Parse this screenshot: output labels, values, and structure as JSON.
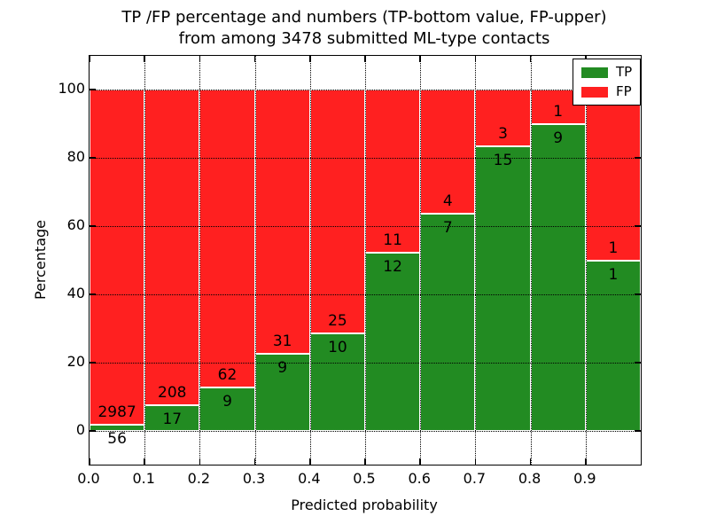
{
  "title": {
    "line1": "TP /FP percentage and numbers (TP-bottom value, FP-upper)",
    "line2": "from among 3478 submitted ML-type contacts"
  },
  "axes": {
    "xlabel": "Predicted probability",
    "ylabel": "Percentage",
    "xtick_labels": [
      "0.0",
      "0.1",
      "0.2",
      "0.3",
      "0.4",
      "0.5",
      "0.6",
      "0.7",
      "0.8",
      "0.9"
    ],
    "ytick_labels": [
      "0",
      "20",
      "40",
      "60",
      "80",
      "100"
    ],
    "ytick_values": [
      0,
      20,
      40,
      60,
      80,
      100
    ]
  },
  "legend": {
    "items": [
      {
        "label": "TP",
        "color": "#228B22"
      },
      {
        "label": "FP",
        "color": "#FF2020"
      }
    ]
  },
  "colors": {
    "tp": "#228B22",
    "fp": "#FF2020",
    "grid": "#000000",
    "background": "#ffffff"
  },
  "chart_data": {
    "type": "bar",
    "stacked": true,
    "orientation": "vertical",
    "title": "TP /FP percentage and numbers (TP-bottom value, FP-upper) from among 3478 submitted ML-type contacts",
    "xlabel": "Predicted probability",
    "ylabel": "Percentage",
    "xlim": [
      0.0,
      1.0
    ],
    "ylim": [
      -10,
      110
    ],
    "grid": "dotted",
    "legend_position": "upper-right",
    "total_submitted": 3478,
    "bins": [
      "0.0-0.1",
      "0.1-0.2",
      "0.2-0.3",
      "0.3-0.4",
      "0.4-0.5",
      "0.5-0.6",
      "0.6-0.7",
      "0.7-0.8",
      "0.8-0.9",
      "0.9-1.0"
    ],
    "series": [
      {
        "name": "TP",
        "color": "#228B22",
        "counts": [
          56,
          17,
          9,
          9,
          10,
          12,
          7,
          15,
          9,
          1
        ],
        "percent": [
          1.84,
          7.56,
          12.68,
          22.5,
          28.57,
          52.17,
          63.64,
          83.33,
          90.0,
          50.0
        ]
      },
      {
        "name": "FP",
        "color": "#FF2020",
        "counts": [
          2987,
          208,
          62,
          31,
          25,
          11,
          4,
          3,
          1,
          1
        ],
        "percent": [
          98.16,
          92.44,
          87.32,
          77.5,
          71.43,
          47.83,
          36.36,
          16.67,
          10.0,
          50.0
        ]
      }
    ]
  }
}
